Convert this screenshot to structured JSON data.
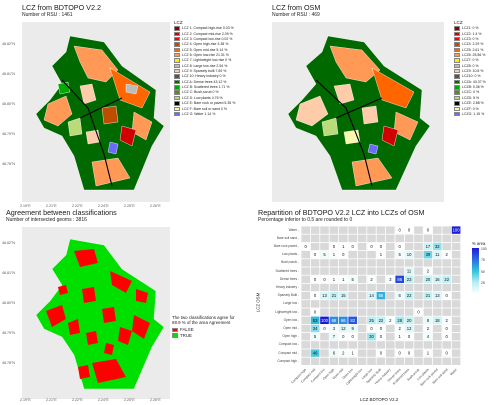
{
  "colors": {
    "lcz": [
      "#8c0000",
      "#d10000",
      "#ff0000",
      "#bf4d00",
      "#ff6600",
      "#ff9955",
      "#faee05",
      "#bcbcbc",
      "#ffccaa",
      "#555555",
      "#006a00",
      "#00aa00",
      "#648525",
      "#b9db79",
      "#000000",
      "#fbf7ae",
      "#6a6aff"
    ],
    "agree_false": "#ff0000",
    "agree_true": "#00e000",
    "grid": "#ffffff",
    "panel_bg": "#ebebeb"
  },
  "panels": {
    "bdtopo": {
      "title": "LCZ from   BDTOPO V2.2",
      "subtitle": "Number of RSU : 1461",
      "legend_title": "LCZ",
      "legend": [
        "LCZ 1: Compact high-rise 0.03 %",
        "LCZ 2: Compact mid-rise 2.09 %",
        "LCZ 3: Compact low-rise 0.02 %",
        "LCZ 4: Open high-rise 3.38 %",
        "LCZ 5: Open mid-rise 5.14 %",
        "LCZ 6: Open low-rise 21.31 %",
        "LCZ 7: Lightweight low-rise 0 %",
        "LCZ 8: Large low-rise 2.54 %",
        "LCZ 9: Sparsely built 7.69 %",
        "LCZ 10: Heavy industry 0 %",
        "LCZ A: Dense trees 43.12 %",
        "LCZ B: Scattered trees 1.71 %",
        "LCZ C: Bush,scrub 0 %",
        "LCZ D: Low plants 4.76 %",
        "LCZ E: Bare rock or paved 5.35 %",
        "LCZ F: Bare soil or sand 0 %",
        "LCZ G: Water 1.14 %"
      ]
    },
    "osm": {
      "title": "LCZ from   OSM",
      "subtitle": "Number of RSU : 469",
      "legend_title": "LCZ",
      "legend": [
        "LCZ1: 0 %",
        "LCZ2: 1.4 %",
        "LCZ3: 0 %",
        "LCZ4: 2.29 %",
        "LCZ5: 2.61 %",
        "LCZ6: 25.56 %",
        "LCZ7: 0 %",
        "LCZ8: 0 %",
        "LCZ9: 10.8 %",
        "LCZ10: 0 %",
        "LCZA: 40.37 %",
        "LCZB: 0.36 %",
        "LCZC: 0 %",
        "LCZD: 5 %",
        "LCZE: 2.88 %",
        "LCZF: 0 %",
        "LCZG: 1.15 %"
      ]
    },
    "agreement": {
      "title": "Agreement between classifications",
      "subtitle": "Number of intersected geoms : 3816",
      "note_line1": "The two classifications agree for",
      "note_line2": "69.9 % of the area Agreement",
      "false_label": "FALSE",
      "true_label": "TRUE"
    },
    "matrix": {
      "title": "Repartition of   BDTOPO V2.2   LCZ into LCZs of   OSM",
      "subtitle": "Percentage inferior to 0.5 are rounded to 0",
      "xlabel": "LCZ   BDTOPO V2.2",
      "ylabel": "LCZ   OSM",
      "colorbar_title": "% area",
      "colorbar_ticks": [
        "100",
        "75",
        "50",
        "25"
      ]
    }
  },
  "map_ticks": {
    "top_x": [
      "2.19°E",
      "2.21°E",
      "2.22°E",
      "2.24°E",
      "2.25°E",
      "2.26°E"
    ],
    "top_y": [
      "48.82°N",
      "48.81°N",
      "48.80°N",
      "48.79°N",
      "48.78°N"
    ],
    "bottom_x": [
      "2.19°E",
      "2.21°E",
      "2.22°E",
      "2.24°E",
      "2.25°E",
      "2.26°E"
    ],
    "bottom_y": [
      "48.82°N",
      "48.81°N",
      "48.80°N",
      "48.79°N",
      "48.78°N"
    ]
  },
  "chart_data": {
    "type": "heatmap",
    "x_categories": [
      "Compact high",
      "Compact mid",
      "Compact low",
      "Open high",
      "Open mid",
      "Open low",
      "Lightweight low",
      "Large low",
      "Sparsely Built",
      "Heavy industry",
      "Dense trees",
      "Scattered trees",
      "Bush,scrub",
      "Low plants",
      "Bare rock paved",
      "Bare soil sand",
      "Water"
    ],
    "y_categories": [
      "Water",
      "Bare soil sand",
      "Bare rock paved",
      "Low plants",
      "Bush,scrub",
      "Scattered trees",
      "Dense trees",
      "Heavy industry",
      "Sparsely Built",
      "Large low",
      "Lightweight low",
      "Open low",
      "Open mid",
      "Open high",
      "Compact low",
      "Compact mid",
      "Compact high"
    ],
    "cells": [
      {
        "x": 10,
        "y": 0,
        "v": 0
      },
      {
        "x": 11,
        "y": 0,
        "v": 0
      },
      {
        "x": 13,
        "y": 0,
        "v": 0
      },
      {
        "x": 16,
        "y": 0,
        "v": 100
      },
      {
        "x": 0,
        "y": 2,
        "v": 0
      },
      {
        "x": 3,
        "y": 2,
        "v": 0
      },
      {
        "x": 4,
        "y": 2,
        "v": 1
      },
      {
        "x": 5,
        "y": 2,
        "v": 0
      },
      {
        "x": 7,
        "y": 2,
        "v": 0
      },
      {
        "x": 8,
        "y": 2,
        "v": 0
      },
      {
        "x": 10,
        "y": 2,
        "v": 0
      },
      {
        "x": 13,
        "y": 2,
        "v": 17
      },
      {
        "x": 14,
        "y": 2,
        "v": 32
      },
      {
        "x": 1,
        "y": 3,
        "v": 0
      },
      {
        "x": 2,
        "y": 3,
        "v": 5
      },
      {
        "x": 3,
        "y": 3,
        "v": 1
      },
      {
        "x": 4,
        "y": 3,
        "v": 0
      },
      {
        "x": 8,
        "y": 3,
        "v": 1
      },
      {
        "x": 10,
        "y": 3,
        "v": 5
      },
      {
        "x": 11,
        "y": 3,
        "v": 10
      },
      {
        "x": 13,
        "y": 3,
        "v": 39
      },
      {
        "x": 14,
        "y": 3,
        "v": 11
      },
      {
        "x": 15,
        "y": 3,
        "v": 2
      },
      {
        "x": 11,
        "y": 5,
        "v": 11
      },
      {
        "x": 13,
        "y": 5,
        "v": 2
      },
      {
        "x": 1,
        "y": 6,
        "v": 0
      },
      {
        "x": 2,
        "y": 6,
        "v": 0
      },
      {
        "x": 3,
        "y": 6,
        "v": 1
      },
      {
        "x": 4,
        "y": 6,
        "v": 1
      },
      {
        "x": 5,
        "y": 6,
        "v": 5
      },
      {
        "x": 7,
        "y": 6,
        "v": 2
      },
      {
        "x": 9,
        "y": 6,
        "v": 3
      },
      {
        "x": 10,
        "y": 6,
        "v": 86
      },
      {
        "x": 11,
        "y": 6,
        "v": 23
      },
      {
        "x": 13,
        "y": 6,
        "v": 20
      },
      {
        "x": 14,
        "y": 6,
        "v": 16
      },
      {
        "x": 15,
        "y": 6,
        "v": 22
      },
      {
        "x": 1,
        "y": 8,
        "v": 0
      },
      {
        "x": 2,
        "y": 8,
        "v": 13
      },
      {
        "x": 3,
        "y": 8,
        "v": 21
      },
      {
        "x": 4,
        "y": 8,
        "v": 15
      },
      {
        "x": 7,
        "y": 8,
        "v": 14
      },
      {
        "x": 8,
        "y": 8,
        "v": 56
      },
      {
        "x": 10,
        "y": 8,
        "v": 6
      },
      {
        "x": 11,
        "y": 8,
        "v": 22
      },
      {
        "x": 13,
        "y": 8,
        "v": 21
      },
      {
        "x": 14,
        "y": 8,
        "v": 13
      },
      {
        "x": 15,
        "y": 8,
        "v": 0
      },
      {
        "x": 1,
        "y": 10,
        "v": 0
      },
      {
        "x": 12,
        "y": 10,
        "v": 0
      },
      {
        "x": 1,
        "y": 11,
        "v": 53
      },
      {
        "x": 2,
        "y": 11,
        "v": 100
      },
      {
        "x": 3,
        "y": 11,
        "v": 66
      },
      {
        "x": 4,
        "y": 11,
        "v": 66
      },
      {
        "x": 5,
        "y": 11,
        "v": 82
      },
      {
        "x": 7,
        "y": 11,
        "v": 25
      },
      {
        "x": 8,
        "y": 11,
        "v": 22
      },
      {
        "x": 9,
        "y": 11,
        "v": 2
      },
      {
        "x": 10,
        "y": 11,
        "v": 28
      },
      {
        "x": 11,
        "y": 11,
        "v": 20
      },
      {
        "x": 13,
        "y": 11,
        "v": 8
      },
      {
        "x": 14,
        "y": 11,
        "v": 18
      },
      {
        "x": 15,
        "y": 11,
        "v": 2
      },
      {
        "x": 1,
        "y": 12,
        "v": 34
      },
      {
        "x": 2,
        "y": 12,
        "v": 0
      },
      {
        "x": 3,
        "y": 12,
        "v": 3
      },
      {
        "x": 4,
        "y": 12,
        "v": 12
      },
      {
        "x": 5,
        "y": 12,
        "v": 9
      },
      {
        "x": 7,
        "y": 12,
        "v": 0
      },
      {
        "x": 8,
        "y": 12,
        "v": 0
      },
      {
        "x": 10,
        "y": 12,
        "v": 2
      },
      {
        "x": 11,
        "y": 12,
        "v": 12
      },
      {
        "x": 13,
        "y": 12,
        "v": 2
      },
      {
        "x": 15,
        "y": 12,
        "v": 0
      },
      {
        "x": 1,
        "y": 13,
        "v": 5
      },
      {
        "x": 3,
        "y": 13,
        "v": 7
      },
      {
        "x": 4,
        "y": 13,
        "v": 0
      },
      {
        "x": 5,
        "y": 13,
        "v": 0
      },
      {
        "x": 7,
        "y": 13,
        "v": 30
      },
      {
        "x": 8,
        "y": 13,
        "v": 0
      },
      {
        "x": 10,
        "y": 13,
        "v": 1
      },
      {
        "x": 11,
        "y": 13,
        "v": 0
      },
      {
        "x": 13,
        "y": 13,
        "v": 4
      },
      {
        "x": 15,
        "y": 13,
        "v": 0
      },
      {
        "x": 1,
        "y": 15,
        "v": 46
      },
      {
        "x": 3,
        "y": 15,
        "v": 6
      },
      {
        "x": 4,
        "y": 15,
        "v": 2
      },
      {
        "x": 5,
        "y": 15,
        "v": 1
      },
      {
        "x": 8,
        "y": 15,
        "v": 0
      },
      {
        "x": 10,
        "y": 15,
        "v": 0
      },
      {
        "x": 11,
        "y": 15,
        "v": 0
      },
      {
        "x": 13,
        "y": 15,
        "v": 1
      },
      {
        "x": 15,
        "y": 15,
        "v": 0
      }
    ],
    "value_range": [
      0,
      100
    ]
  }
}
